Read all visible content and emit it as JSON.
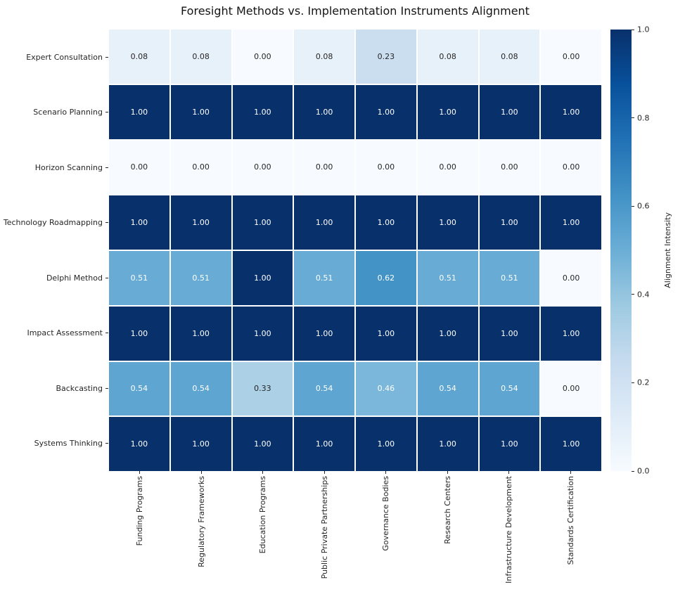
{
  "chart_data": {
    "type": "heatmap",
    "title": "Foresight Methods vs. Implementation Instruments Alignment",
    "rows": [
      "Expert Consultation",
      "Scenario Planning",
      "Horizon Scanning",
      "Technology Roadmapping",
      "Delphi Method",
      "Impact Assessment",
      "Backcasting",
      "Systems Thinking"
    ],
    "columns": [
      "Funding Programs",
      "Regulatory Frameworks",
      "Education Programs",
      "Public Private Partnerships",
      "Governance Bodies",
      "Research Centers",
      "Infrastructure Development",
      "Standards Certification"
    ],
    "values": [
      [
        0.08,
        0.08,
        0.0,
        0.08,
        0.23,
        0.08,
        0.08,
        0.0
      ],
      [
        1.0,
        1.0,
        1.0,
        1.0,
        1.0,
        1.0,
        1.0,
        1.0
      ],
      [
        0.0,
        0.0,
        0.0,
        0.0,
        0.0,
        0.0,
        0.0,
        0.0
      ],
      [
        1.0,
        1.0,
        1.0,
        1.0,
        1.0,
        1.0,
        1.0,
        1.0
      ],
      [
        0.51,
        0.51,
        1.0,
        0.51,
        0.62,
        0.51,
        0.51,
        0.0
      ],
      [
        1.0,
        1.0,
        1.0,
        1.0,
        1.0,
        1.0,
        1.0,
        1.0
      ],
      [
        0.54,
        0.54,
        0.33,
        0.54,
        0.46,
        0.54,
        0.54,
        0.0
      ],
      [
        1.0,
        1.0,
        1.0,
        1.0,
        1.0,
        1.0,
        1.0,
        1.0
      ]
    ],
    "colorbar": {
      "label": "Alignment Intensity",
      "ticks": [
        0.0,
        0.2,
        0.4,
        0.6,
        0.8,
        1.0
      ],
      "range": [
        0,
        1
      ]
    },
    "colormap": {
      "name": "Blues",
      "anchors": [
        "#f7fbff",
        "#deebf7",
        "#c6dbef",
        "#9ecae1",
        "#6baed6",
        "#4292c6",
        "#2171b5",
        "#08519c",
        "#08306b"
      ]
    },
    "annotation_text_colors": {
      "dark": "#262626",
      "light": "#ffffff"
    }
  }
}
